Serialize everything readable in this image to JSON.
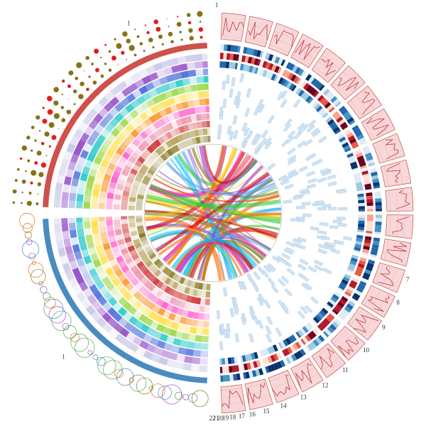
{
  "segments": [
    "1",
    "7",
    "8",
    "9",
    "10",
    "11",
    "12",
    "13",
    "14",
    "15",
    "16",
    "17",
    "18",
    "19",
    "20",
    "21",
    "22"
  ],
  "left_segments": [
    "1",
    "1"
  ]
}
